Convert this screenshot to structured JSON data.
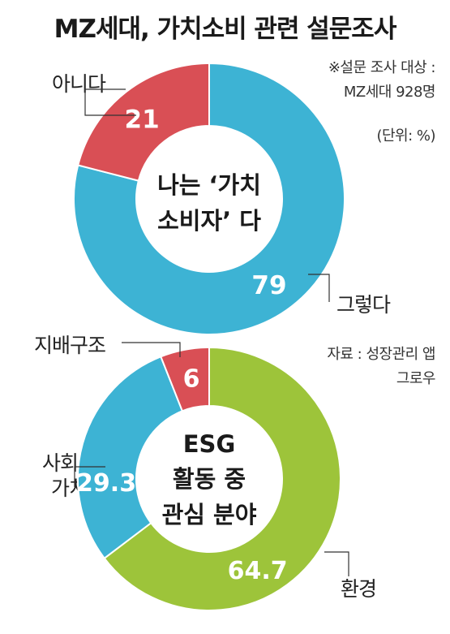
{
  "header": {
    "title": "MZ세대, 가치소비 관련 설문조사"
  },
  "notes": {
    "target_line1": "※설문 조사 대상 :",
    "target_line2": "MZ세대 928명",
    "unit": "(단위: %)",
    "source_line1": "자료 : 성장관리 앱",
    "source_line2": "그로우"
  },
  "chart_data": [
    {
      "type": "pie",
      "center_label": [
        "나는 ‘가치",
        "소비자’ 다"
      ],
      "categories": [
        "그렇다",
        "아니다"
      ],
      "values": [
        79,
        21
      ],
      "value_labels": [
        "79",
        "21"
      ],
      "colors": [
        "#3db3d4",
        "#d94f55"
      ]
    },
    {
      "type": "pie",
      "center_label": [
        "ESG",
        "활동 중",
        "관심 분야"
      ],
      "categories": [
        "환경",
        "사회적 가치",
        "지배구조"
      ],
      "values": [
        64.7,
        29.3,
        6
      ],
      "value_labels": [
        "64.7",
        "29.3",
        "6"
      ],
      "colors": [
        "#9dc43a",
        "#3db3d4",
        "#d94f55"
      ]
    }
  ]
}
